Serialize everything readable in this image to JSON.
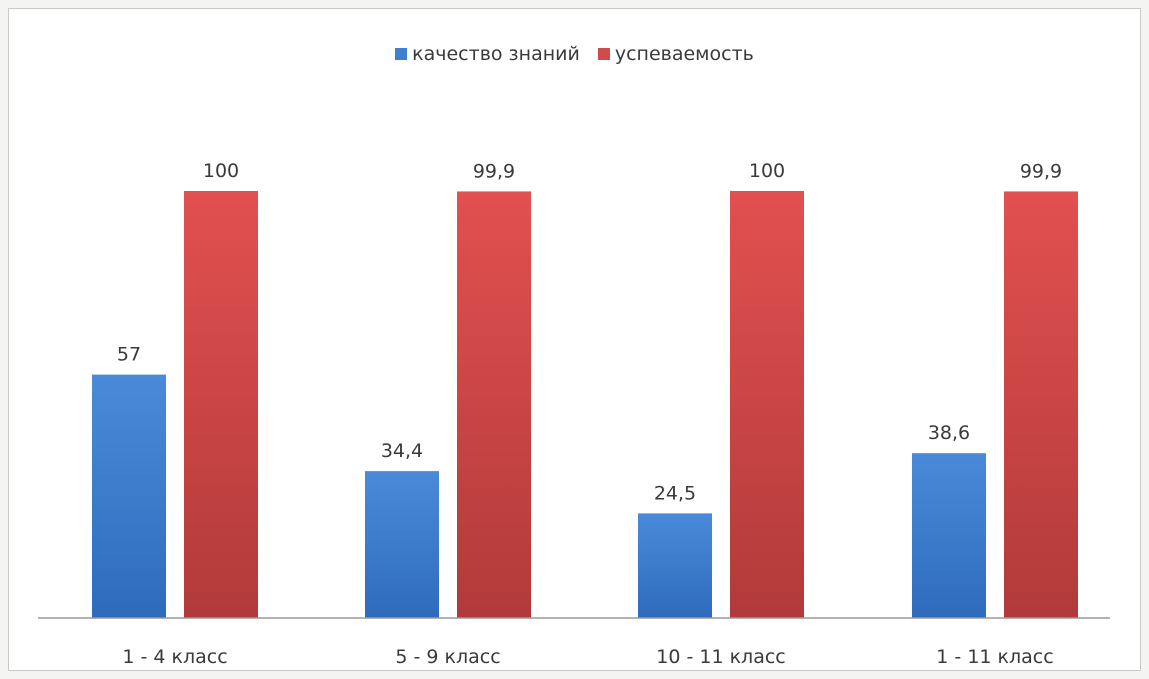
{
  "chart_data": {
    "type": "bar",
    "categories": [
      "1 - 4 класс",
      "5 - 9 класс",
      "10 - 11 класс",
      "1 - 11 класс"
    ],
    "series": [
      {
        "name": "качество знаний",
        "values": [
          57,
          34.4,
          24.5,
          38.6
        ],
        "labels": [
          "57",
          "34,4",
          "24,5",
          "38,6"
        ],
        "color": "#3f7fd0"
      },
      {
        "name": "успеваемость",
        "values": [
          100,
          99.9,
          100,
          99.9
        ],
        "labels": [
          "100",
          "99,9",
          "100",
          "99,9"
        ],
        "color": "#d24b4b"
      }
    ],
    "ylim": [
      0,
      100
    ],
    "grid": false,
    "legend": "top-center"
  }
}
